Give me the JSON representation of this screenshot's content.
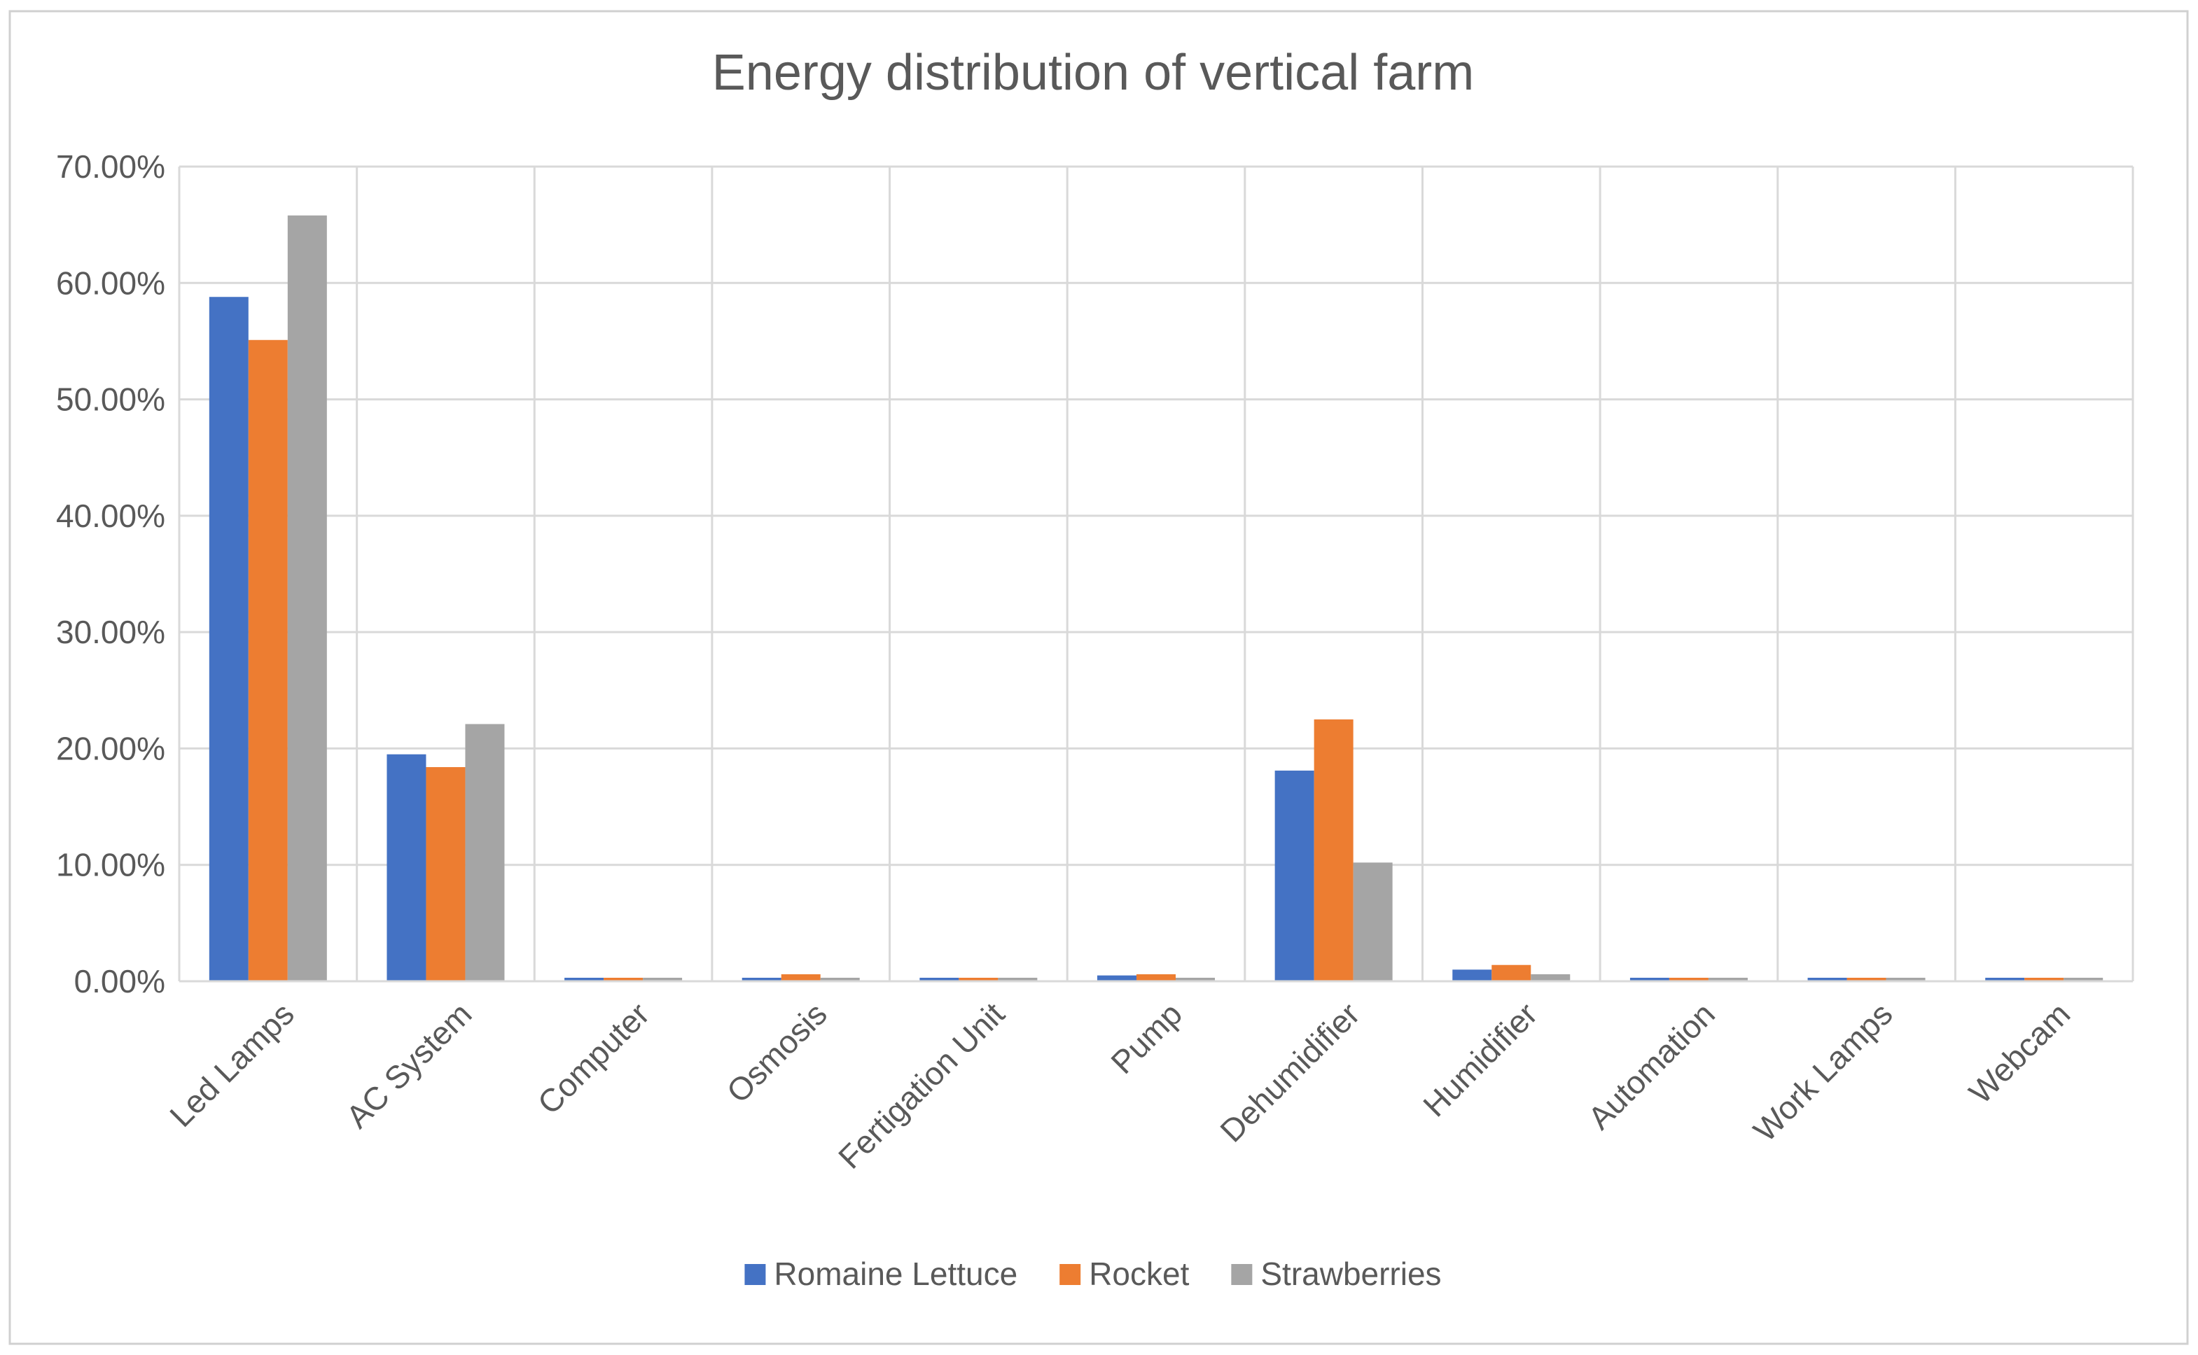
{
  "chart_data": {
    "type": "bar",
    "title": "Energy distribution of vertical farm",
    "xlabel": "",
    "ylabel": "",
    "ylim": [
      0,
      0.7
    ],
    "ytick_values": [
      0,
      0.1,
      0.2,
      0.3,
      0.4,
      0.5,
      0.6,
      0.7
    ],
    "ytick_labels": [
      "0.00%",
      "10.00%",
      "20.00%",
      "30.00%",
      "40.00%",
      "50.00%",
      "60.00%",
      "70.00%"
    ],
    "grid": true,
    "legend_position": "bottom",
    "categories": [
      "Led Lamps",
      "AC System",
      "Computer",
      "Osmosis",
      "Fertigation Unit",
      "Pump",
      "Dehumidifier",
      "Humidifier",
      "Automation",
      "Work Lamps",
      "Webcam"
    ],
    "series": [
      {
        "name": "Romaine Lettuce",
        "color": "#4472c4",
        "values": [
          0.588,
          0.195,
          0.001,
          0.001,
          0.001,
          0.005,
          0.181,
          0.01,
          0.001,
          0.001,
          0.001
        ]
      },
      {
        "name": "Rocket",
        "color": "#ed7d31",
        "values": [
          0.551,
          0.184,
          0.001,
          0.006,
          0.001,
          0.006,
          0.225,
          0.014,
          0.001,
          0.001,
          0.001
        ]
      },
      {
        "name": "Strawberries",
        "color": "#a5a5a5",
        "values": [
          0.658,
          0.221,
          0.001,
          0.001,
          0.001,
          0.002,
          0.102,
          0.006,
          0.001,
          0.001,
          0.001
        ]
      }
    ]
  }
}
